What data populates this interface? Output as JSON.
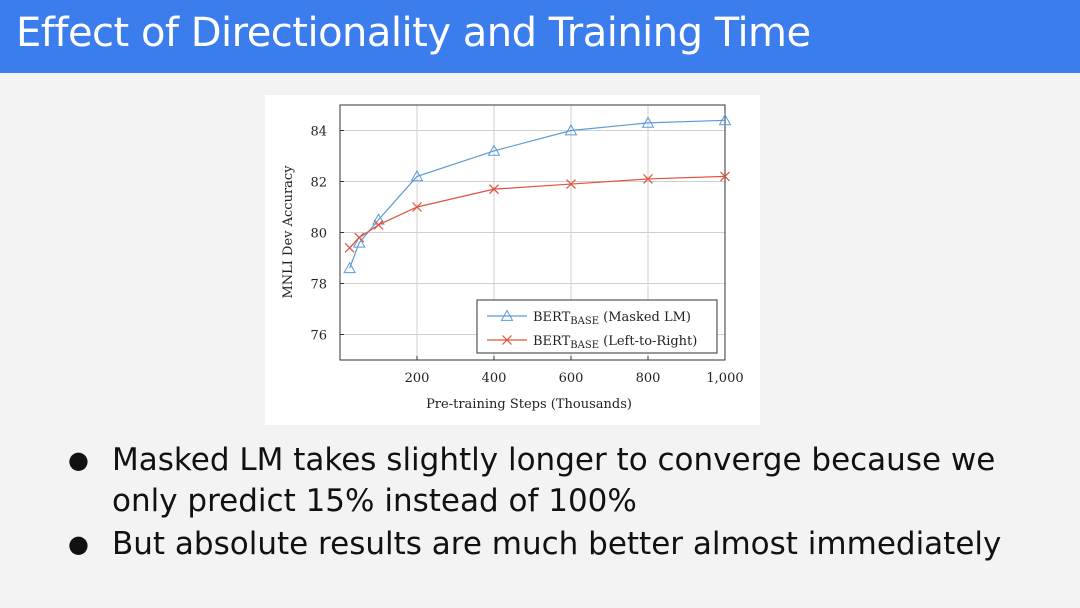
{
  "slide": {
    "title": "Effect of Directionality and Training Time",
    "bullets": [
      "Masked LM takes slightly longer to converge because we only predict 15% instead of 100%",
      "But absolute results are much better almost immediately"
    ]
  },
  "chart_data": {
    "type": "line",
    "title": "",
    "xlabel": "Pre-training Steps (Thousands)",
    "ylabel": "MNLI Dev Accuracy",
    "xlim": [
      0,
      1000
    ],
    "ylim": [
      75,
      85
    ],
    "xticks": [
      200,
      400,
      600,
      800,
      1000
    ],
    "xtick_labels": [
      "200",
      "400",
      "600",
      "800",
      "1,000"
    ],
    "yticks": [
      76,
      78,
      80,
      82,
      84
    ],
    "grid": true,
    "legend_position": "bottom-right",
    "series": [
      {
        "name": "BERTBASE (Masked LM)",
        "name_main": "BERT",
        "name_sub": "BASE",
        "name_suffix": " (Masked LM)",
        "color": "#5b9bd5",
        "marker": "triangle",
        "x": [
          25,
          50,
          100,
          200,
          400,
          600,
          800,
          1000
        ],
        "y": [
          78.6,
          79.6,
          80.5,
          82.2,
          83.2,
          84.0,
          84.3,
          84.4
        ]
      },
      {
        "name": "BERTBASE (Left-to-Right)",
        "name_main": "BERT",
        "name_sub": "BASE",
        "name_suffix": " (Left-to-Right)",
        "color": "#e0533f",
        "marker": "cross",
        "x": [
          25,
          50,
          100,
          200,
          400,
          600,
          800,
          1000
        ],
        "y": [
          79.4,
          79.8,
          80.3,
          81.0,
          81.7,
          81.9,
          82.1,
          82.2
        ]
      }
    ]
  }
}
